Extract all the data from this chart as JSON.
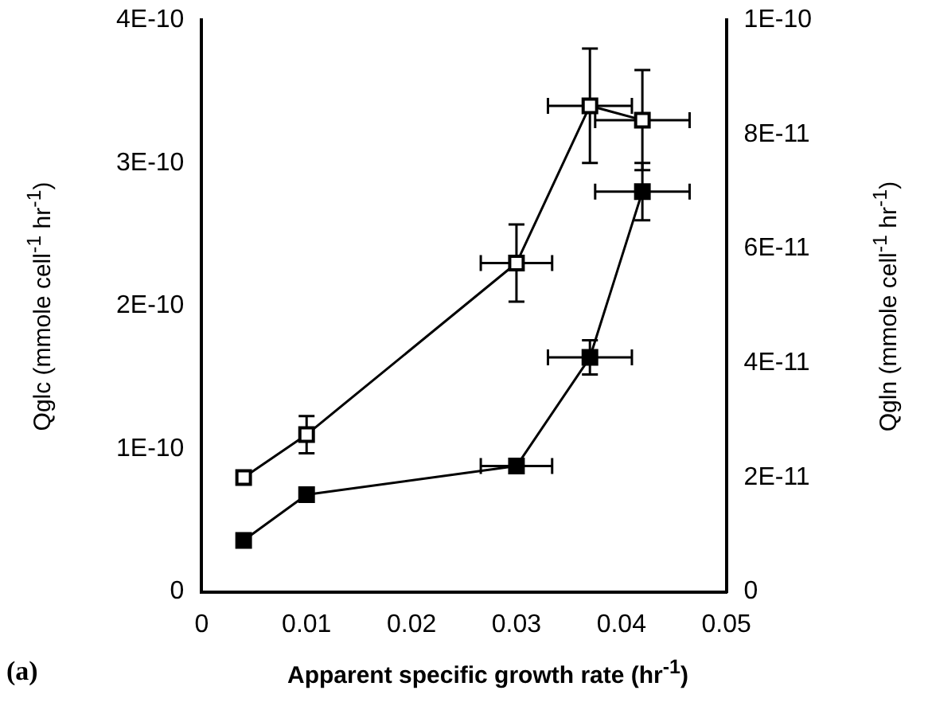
{
  "chart_data": {
    "type": "line",
    "xlabel": "Apparent specific growth rate (hr$^{-1}$)",
    "ylabel": "Qglc (mmole cell$^{-1}$ hr$^{-1}$)",
    "y2label": "Qgln (mmole cell$^{-1}$ hr$^{-1}$)",
    "x": [
      0.004,
      0.01,
      0.03,
      0.037,
      0.042
    ],
    "series": [
      {
        "color": "#000000",
        "values": [
          8e-11,
          1.1e-10,
          2.3e-10,
          3.4e-10,
          3.3e-10
        ],
        "errors": [
          null,
          1.3e-11,
          2.7e-11,
          4e-11,
          3.5e-11
        ],
        "xerrors": [
          null,
          null,
          0.0034,
          0.004,
          0.0045
        ]
      },
      {
        "color": "#000000",
        "axis": "y2",
        "values": [
          9e-12,
          1.7e-11,
          2.2e-11,
          4.1e-11,
          7e-11
        ],
        "errors": [
          null,
          null,
          null,
          3e-12,
          5e-12
        ],
        "xerrors": [
          null,
          null,
          0.0034,
          0.004,
          0.0045
        ]
      }
    ],
    "xlim": [
      0,
      0.05
    ],
    "xticks": [
      0,
      0.01,
      0.02,
      0.03,
      0.04,
      0.05
    ],
    "ylim": [
      0,
      4e-10
    ],
    "yticks": [
      0,
      {
        "value": 1e-10,
        "label": "1E-10"
      },
      {
        "value": 2e-10,
        "label": "2E-10"
      },
      {
        "value": 3e-10,
        "label": "3E-10"
      },
      {
        "value": 4e-10,
        "label": "4E-10"
      }
    ],
    "y2lim": [
      0,
      1e-10
    ],
    "y2ticks": [
      0,
      {
        "value": 2e-11,
        "label": "2E-11"
      },
      {
        "value": 4e-11,
        "label": "4E-11"
      },
      {
        "value": 6e-11,
        "label": "6E-11"
      },
      {
        "value": 8e-11,
        "label": "8E-11"
      },
      {
        "value": 1e-10,
        "label": "1E-10"
      }
    ],
    "marker": "square",
    "line_style": "solid",
    "grid": false,
    "legend": false,
    "annotations": [
      "(a)"
    ]
  }
}
